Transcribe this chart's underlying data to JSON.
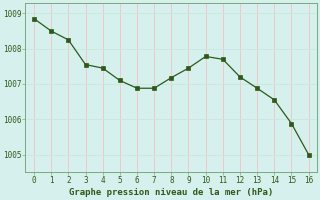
{
  "x": [
    0,
    1,
    2,
    3,
    4,
    5,
    6,
    7,
    8,
    9,
    10,
    11,
    12,
    13,
    14,
    15,
    16
  ],
  "y": [
    1008.85,
    1008.5,
    1008.25,
    1007.55,
    1007.45,
    1007.1,
    1006.88,
    1006.88,
    1007.18,
    1007.45,
    1007.78,
    1007.7,
    1007.2,
    1006.88,
    1006.55,
    1005.88,
    1005.0
  ],
  "line_color": "#2d5a1b",
  "marker_color": "#2d5a1b",
  "bg_color": "#d6f0ee",
  "grid_color_h": "#c8e8e0",
  "grid_color_v": "#f0c8c8",
  "xlabel": "Graphe pression niveau de la mer (hPa)",
  "xlabel_color": "#2d5a1b",
  "tick_color": "#2d5a1b",
  "ylim": [
    1004.5,
    1009.3
  ],
  "xlim": [
    -0.5,
    16.5
  ],
  "yticks": [
    1005,
    1006,
    1007,
    1008,
    1009
  ],
  "xticks": [
    0,
    1,
    2,
    3,
    4,
    5,
    6,
    7,
    8,
    9,
    10,
    11,
    12,
    13,
    14,
    15,
    16
  ],
  "spine_color": "#7aaa7a"
}
